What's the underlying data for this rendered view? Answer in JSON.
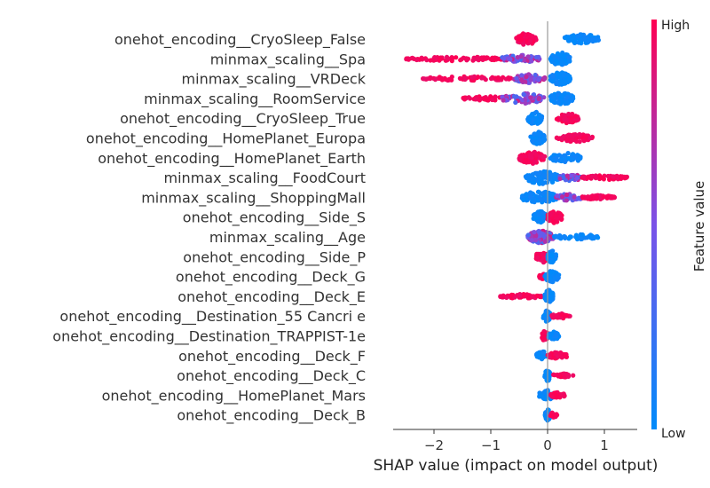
{
  "chart_data": {
    "type": "scatter",
    "subtype": "shap-beeswarm",
    "xlabel": "SHAP value (impact on model output)",
    "xlim": [
      -2.65,
      1.55
    ],
    "xticks": [
      -2,
      -1,
      0,
      1
    ],
    "xtick_labels": [
      "−2",
      "−1",
      "0",
      "1"
    ],
    "colorbar": {
      "title": "Feature value",
      "high_label": "High",
      "low_label": "Low",
      "high_color": "#ff0052",
      "low_color": "#008bfb"
    },
    "features": [
      {
        "name": "onehot_encoding__CryoSleep_False",
        "segments": [
          {
            "min": -0.55,
            "max": -0.2,
            "color": "high",
            "spread": 0.85,
            "n": 60
          },
          {
            "min": 0.3,
            "max": 0.9,
            "color": "low",
            "spread": 0.7,
            "n": 70
          }
        ]
      },
      {
        "name": "minmax_scaling__Spa",
        "segments": [
          {
            "min": -2.5,
            "max": -0.8,
            "color": "high",
            "spread": 0.3,
            "n": 90
          },
          {
            "min": -0.8,
            "max": -0.1,
            "color": "mixed",
            "spread": 0.55,
            "n": 60
          },
          {
            "min": 0.05,
            "max": 0.4,
            "color": "low",
            "spread": 0.9,
            "n": 80
          }
        ]
      },
      {
        "name": "minmax_scaling__VRDeck",
        "segments": [
          {
            "min": -2.2,
            "max": -0.6,
            "color": "high",
            "spread": 0.3,
            "n": 70
          },
          {
            "min": -0.6,
            "max": -0.05,
            "color": "mixed",
            "spread": 0.6,
            "n": 60
          },
          {
            "min": 0.05,
            "max": 0.4,
            "color": "low",
            "spread": 0.9,
            "n": 80
          }
        ]
      },
      {
        "name": "minmax_scaling__RoomService",
        "segments": [
          {
            "min": -1.5,
            "max": -0.7,
            "color": "high",
            "spread": 0.3,
            "n": 40
          },
          {
            "min": -0.8,
            "max": -0.05,
            "color": "mixed",
            "spread": 0.7,
            "n": 80
          },
          {
            "min": 0.05,
            "max": 0.45,
            "color": "low",
            "spread": 0.85,
            "n": 80
          }
        ]
      },
      {
        "name": "onehot_encoding__CryoSleep_True",
        "segments": [
          {
            "min": -0.35,
            "max": -0.1,
            "color": "low",
            "spread": 0.9,
            "n": 60
          },
          {
            "min": 0.15,
            "max": 0.55,
            "color": "high",
            "spread": 0.7,
            "n": 50
          }
        ]
      },
      {
        "name": "onehot_encoding__HomePlanet_Europa",
        "segments": [
          {
            "min": -0.3,
            "max": -0.05,
            "color": "low",
            "spread": 0.9,
            "n": 60
          },
          {
            "min": 0.15,
            "max": 0.8,
            "color": "high",
            "spread": 0.55,
            "n": 60
          }
        ]
      },
      {
        "name": "onehot_encoding__HomePlanet_Earth",
        "segments": [
          {
            "min": -0.5,
            "max": -0.05,
            "color": "high",
            "spread": 0.85,
            "n": 80
          },
          {
            "min": 0.05,
            "max": 0.6,
            "color": "low",
            "spread": 0.7,
            "n": 60
          }
        ]
      },
      {
        "name": "minmax_scaling__FoodCourt",
        "segments": [
          {
            "min": -0.4,
            "max": 0.2,
            "color": "low",
            "spread": 0.9,
            "n": 90
          },
          {
            "min": 0.2,
            "max": 0.6,
            "color": "mixed",
            "spread": 0.5,
            "n": 40
          },
          {
            "min": 0.6,
            "max": 1.4,
            "color": "high",
            "spread": 0.3,
            "n": 50
          }
        ]
      },
      {
        "name": "minmax_scaling__ShoppingMall",
        "segments": [
          {
            "min": -0.45,
            "max": 0.15,
            "color": "low",
            "spread": 0.9,
            "n": 90
          },
          {
            "min": 0.15,
            "max": 0.6,
            "color": "mixed",
            "spread": 0.5,
            "n": 40
          },
          {
            "min": 0.6,
            "max": 1.2,
            "color": "high",
            "spread": 0.3,
            "n": 50
          }
        ]
      },
      {
        "name": "onehot_encoding__Side_S",
        "segments": [
          {
            "min": -0.25,
            "max": -0.02,
            "color": "low",
            "spread": 0.85,
            "n": 50
          },
          {
            "min": 0.0,
            "max": 0.25,
            "color": "high",
            "spread": 0.9,
            "n": 60
          }
        ]
      },
      {
        "name": "minmax_scaling__Age",
        "segments": [
          {
            "min": -0.35,
            "max": 0.1,
            "color": "mixed",
            "spread": 0.9,
            "n": 100
          },
          {
            "min": 0.1,
            "max": 0.9,
            "color": "low",
            "spread": 0.4,
            "n": 50
          }
        ]
      },
      {
        "name": "onehot_encoding__Side_P",
        "segments": [
          {
            "min": -0.2,
            "max": 0.0,
            "color": "high",
            "spread": 0.85,
            "n": 45
          },
          {
            "min": 0.0,
            "max": 0.15,
            "color": "low",
            "spread": 0.85,
            "n": 45
          }
        ]
      },
      {
        "name": "onehot_encoding__Deck_G",
        "segments": [
          {
            "min": -0.15,
            "max": 0.0,
            "color": "high",
            "spread": 0.4,
            "n": 25
          },
          {
            "min": -0.05,
            "max": 0.2,
            "color": "low",
            "spread": 0.8,
            "n": 55
          }
        ]
      },
      {
        "name": "onehot_encoding__Deck_E",
        "segments": [
          {
            "min": -0.85,
            "max": -0.05,
            "color": "high",
            "spread": 0.3,
            "n": 45
          },
          {
            "min": -0.05,
            "max": 0.1,
            "color": "low",
            "spread": 0.9,
            "n": 50
          }
        ]
      },
      {
        "name": "onehot_encoding__Destination_55 Cancri e",
        "segments": [
          {
            "min": -0.08,
            "max": 0.05,
            "color": "low",
            "spread": 0.8,
            "n": 40
          },
          {
            "min": 0.05,
            "max": 0.4,
            "color": "high",
            "spread": 0.35,
            "n": 35
          }
        ]
      },
      {
        "name": "onehot_encoding__Destination_TRAPPIST-1e",
        "segments": [
          {
            "min": -0.1,
            "max": 0.0,
            "color": "high",
            "spread": 0.8,
            "n": 35
          },
          {
            "min": 0.0,
            "max": 0.2,
            "color": "low",
            "spread": 0.6,
            "n": 35
          }
        ]
      },
      {
        "name": "onehot_encoding__Deck_F",
        "segments": [
          {
            "min": -0.2,
            "max": 0.0,
            "color": "low",
            "spread": 0.6,
            "n": 30
          },
          {
            "min": 0.0,
            "max": 0.35,
            "color": "high",
            "spread": 0.5,
            "n": 35
          }
        ]
      },
      {
        "name": "onehot_encoding__Deck_C",
        "segments": [
          {
            "min": -0.05,
            "max": 0.05,
            "color": "low",
            "spread": 0.8,
            "n": 35
          },
          {
            "min": 0.1,
            "max": 0.45,
            "color": "high",
            "spread": 0.3,
            "n": 25
          }
        ]
      },
      {
        "name": "onehot_encoding__HomePlanet_Mars",
        "segments": [
          {
            "min": -0.15,
            "max": 0.1,
            "color": "low",
            "spread": 0.8,
            "n": 40
          },
          {
            "min": 0.05,
            "max": 0.3,
            "color": "high",
            "spread": 0.4,
            "n": 25
          }
        ]
      },
      {
        "name": "onehot_encoding__Deck_B",
        "segments": [
          {
            "min": -0.05,
            "max": 0.05,
            "color": "low",
            "spread": 0.8,
            "n": 35
          },
          {
            "min": 0.05,
            "max": 0.18,
            "color": "high",
            "spread": 0.4,
            "n": 15
          }
        ]
      }
    ]
  }
}
